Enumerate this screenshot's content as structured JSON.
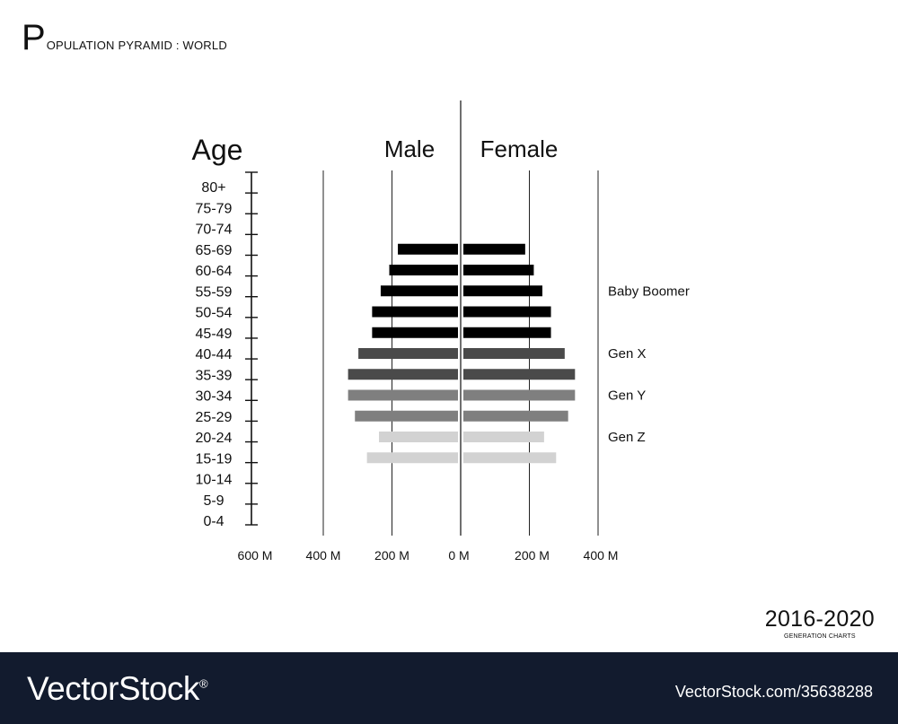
{
  "title": {
    "initial": "P",
    "rest": "OPULATION PYRAMID : WORLD"
  },
  "period": {
    "years": "2016-2020",
    "subtitle": "GENERATION CHARTS"
  },
  "footer": {
    "brand": "VectorStock",
    "registered": "®",
    "image_id": "VectorStock.com/35638288"
  },
  "chart_data": {
    "type": "bar",
    "orientation": "horizontal-pyramid",
    "age_axis_title": "Age",
    "categories": [
      "80+",
      "75-79",
      "70-74",
      "65-69",
      "60-64",
      "55-59",
      "50-54",
      "45-49",
      "40-44",
      "35-39",
      "30-34",
      "25-29",
      "20-24",
      "15-19",
      "10-14",
      "5-9",
      "0-4"
    ],
    "series": [
      {
        "name": "Male",
        "values": [
          null,
          null,
          null,
          175,
          200,
          225,
          250,
          250,
          290,
          320,
          320,
          300,
          230,
          265,
          null,
          null,
          null
        ]
      },
      {
        "name": "Female",
        "values": [
          null,
          null,
          null,
          180,
          205,
          230,
          255,
          255,
          295,
          325,
          325,
          305,
          235,
          270,
          null,
          null,
          null
        ]
      }
    ],
    "colors": [
      "#000000",
      "#000000",
      "#000000",
      "#000000",
      "#000000",
      "#000000",
      "#000000",
      "#000000",
      "#4a4a4a",
      "#4a4a4a",
      "#7f7f7f",
      "#7f7f7f",
      "#d2d2d2",
      "#d2d2d2",
      "#ffffff",
      "#ffffff",
      "#ffffff"
    ],
    "x_ticks": {
      "male": [
        {
          "value": 600,
          "label": "600 M"
        },
        {
          "value": 400,
          "label": "400 M"
        },
        {
          "value": 200,
          "label": "200 M"
        },
        {
          "value": 0,
          "label": "0 M"
        }
      ],
      "female": [
        {
          "value": 200,
          "label": "200 M"
        },
        {
          "value": 400,
          "label": "400 M"
        }
      ]
    },
    "xlim": [
      0,
      400
    ],
    "grid": true,
    "generation_labels": [
      {
        "text": "Baby Boomer",
        "category": "55-59"
      },
      {
        "text": "Gen X",
        "category": "40-44"
      },
      {
        "text": "Gen Y",
        "category": "30-34"
      },
      {
        "text": "Gen Z",
        "category": "20-24"
      }
    ]
  }
}
